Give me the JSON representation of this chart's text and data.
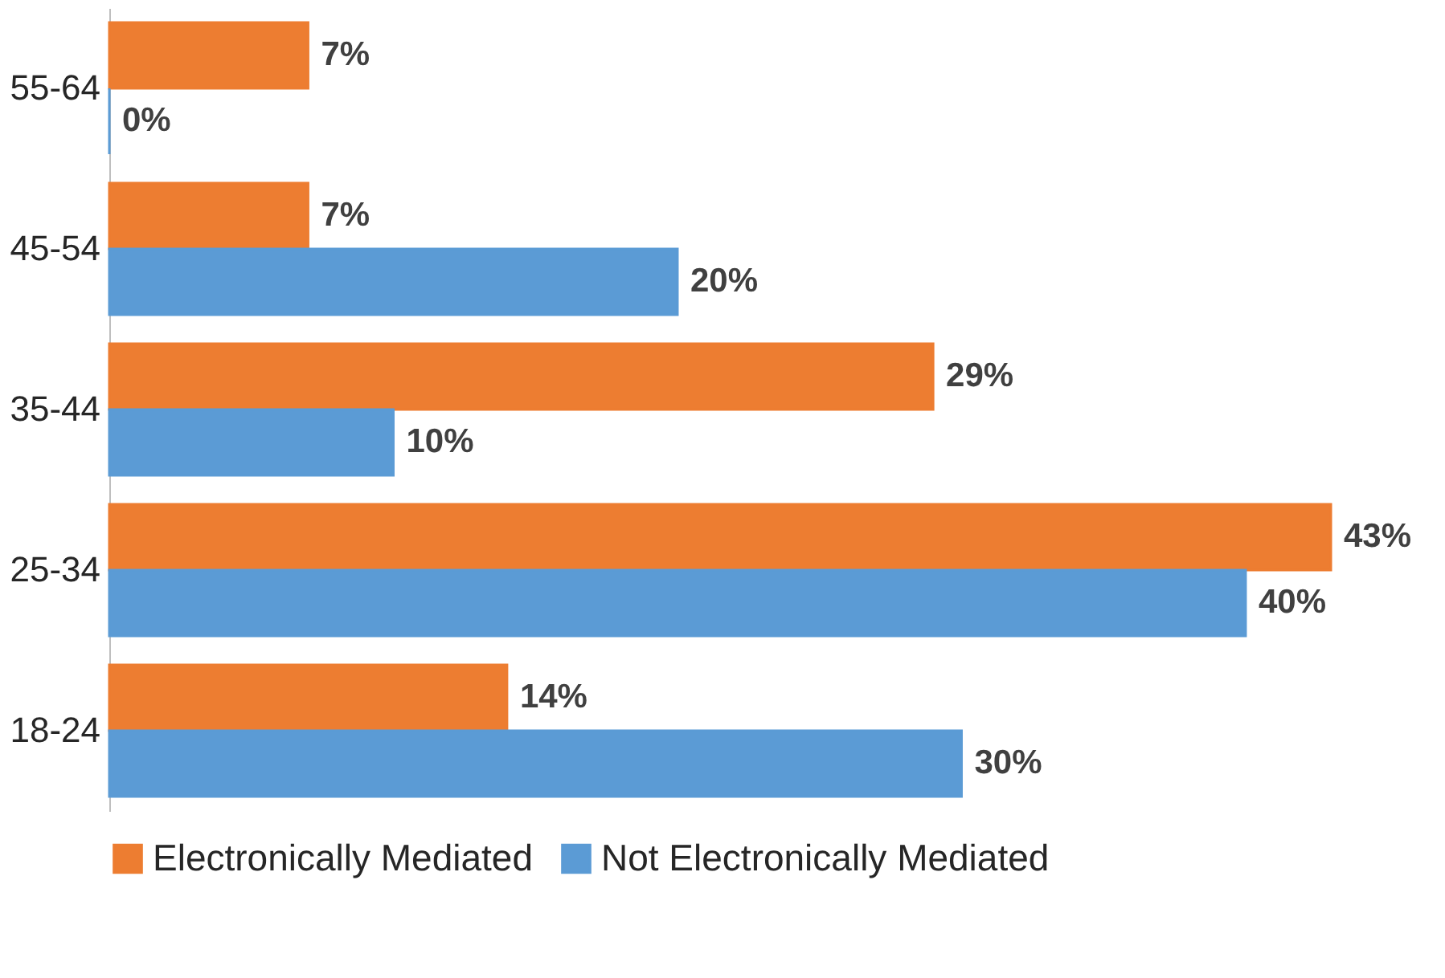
{
  "chart_data": {
    "type": "bar",
    "orientation": "horizontal",
    "categories": [
      "55-64",
      "45-54",
      "35-44",
      "25-34",
      "18-24"
    ],
    "series": [
      {
        "name": "Electronically Mediated",
        "color": "#ed7d31",
        "values": [
          7,
          7,
          29,
          43,
          14
        ],
        "value_labels": [
          "7%",
          "7%",
          "29%",
          "43%",
          "14%"
        ]
      },
      {
        "name": "Not Electronically Mediated",
        "color": "#5b9bd5",
        "values": [
          0,
          20,
          10,
          40,
          30
        ],
        "value_labels": [
          "0%",
          "20%",
          "10%",
          "40%",
          "30%"
        ]
      }
    ],
    "legend": "bottom",
    "grid": false
  }
}
